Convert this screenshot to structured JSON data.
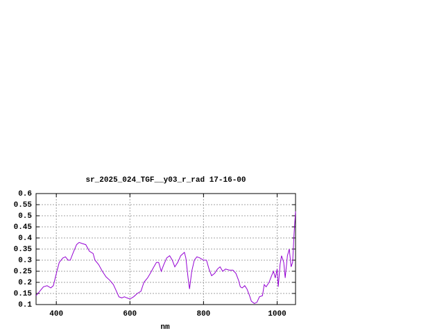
{
  "chart_data": {
    "type": "line",
    "title": "sr_2025_024_TGF__y03_r_rad 17-16-00",
    "xlabel": "nm",
    "xlim": [
      345,
      1050
    ],
    "xticks": [
      400,
      600,
      800,
      1000
    ],
    "ylim": [
      0.1,
      0.6
    ],
    "yticks": [
      0.1,
      0.15,
      0.2,
      0.25,
      0.3,
      0.35,
      0.4,
      0.45,
      0.5,
      0.55,
      0.6
    ],
    "grid": true,
    "series": [
      {
        "color": "#9400d3",
        "x": [
          345,
          355,
          365,
          375,
          385,
          392,
          400,
          408,
          418,
          425,
          432,
          438,
          445,
          455,
          462,
          470,
          480,
          490,
          500,
          505,
          515,
          525,
          535,
          545,
          555,
          562,
          570,
          578,
          585,
          592,
          600,
          610,
          620,
          630,
          638,
          648,
          655,
          665,
          672,
          678,
          685,
          692,
          700,
          708,
          715,
          722,
          730,
          738,
          748,
          752,
          758,
          762,
          768,
          775,
          782,
          790,
          800,
          808,
          815,
          822,
          830,
          838,
          845,
          852,
          860,
          870,
          880,
          888,
          895,
          900,
          905,
          912,
          918,
          925,
          930,
          938,
          945,
          952,
          960,
          965,
          970,
          978,
          985,
          990,
          995,
          1000,
          1003,
          1008,
          1012,
          1018,
          1022,
          1028,
          1033,
          1038,
          1042,
          1046,
          1050
        ],
        "values": [
          0.14,
          0.16,
          0.18,
          0.185,
          0.175,
          0.185,
          0.24,
          0.29,
          0.31,
          0.315,
          0.3,
          0.3,
          0.33,
          0.37,
          0.38,
          0.375,
          0.37,
          0.34,
          0.33,
          0.3,
          0.28,
          0.25,
          0.225,
          0.21,
          0.19,
          0.165,
          0.135,
          0.13,
          0.135,
          0.13,
          0.125,
          0.135,
          0.15,
          0.16,
          0.2,
          0.22,
          0.24,
          0.27,
          0.29,
          0.29,
          0.25,
          0.28,
          0.31,
          0.32,
          0.3,
          0.27,
          0.29,
          0.32,
          0.335,
          0.31,
          0.22,
          0.17,
          0.25,
          0.3,
          0.315,
          0.31,
          0.3,
          0.3,
          0.26,
          0.23,
          0.24,
          0.26,
          0.27,
          0.25,
          0.26,
          0.255,
          0.255,
          0.24,
          0.21,
          0.18,
          0.175,
          0.185,
          0.17,
          0.14,
          0.115,
          0.105,
          0.11,
          0.135,
          0.14,
          0.19,
          0.18,
          0.2,
          0.23,
          0.25,
          0.22,
          0.26,
          0.18,
          0.28,
          0.32,
          0.29,
          0.22,
          0.32,
          0.35,
          0.27,
          0.29,
          0.42,
          0.52
        ]
      }
    ]
  }
}
